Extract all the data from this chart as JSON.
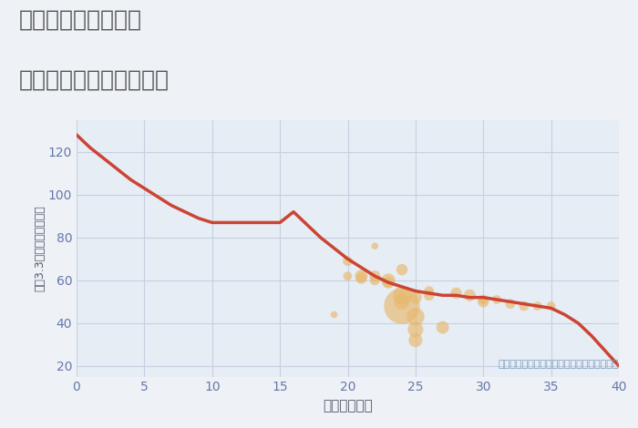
{
  "title_line1": "奈良県奈良市丸山の",
  "title_line2": "築年数別中古戸建て価格",
  "xlabel": "築年数（年）",
  "ylabel": "坪（3.3㎡）単価（万円）",
  "background_color": "#eef2f7",
  "plot_bg_color": "#e6edf5",
  "line_color": "#cc4433",
  "line_x": [
    0,
    1,
    2,
    3,
    4,
    5,
    6,
    7,
    8,
    9,
    10,
    11,
    12,
    13,
    14,
    15,
    16,
    17,
    18,
    19,
    20,
    21,
    22,
    23,
    24,
    25,
    26,
    27,
    28,
    29,
    30,
    31,
    32,
    33,
    34,
    35,
    36,
    37,
    38,
    39,
    40
  ],
  "line_y": [
    128,
    122,
    117,
    112,
    107,
    103,
    99,
    95,
    92,
    89,
    87,
    87,
    87,
    87,
    87,
    87,
    92,
    86,
    80,
    75,
    70,
    66,
    62,
    59,
    57,
    55,
    54,
    53,
    53,
    52,
    52,
    51,
    50,
    49,
    48,
    47,
    44,
    40,
    34,
    27,
    20
  ],
  "bubble_x": [
    19,
    20,
    20,
    21,
    21,
    22,
    22,
    22,
    23,
    23,
    24,
    24,
    24,
    24,
    25,
    25,
    25,
    25,
    26,
    26,
    27,
    28,
    29,
    30,
    30,
    31,
    32,
    33,
    34,
    35
  ],
  "bubble_y": [
    44,
    69,
    62,
    62,
    61,
    76,
    62,
    60,
    60,
    59,
    65,
    53,
    50,
    48,
    52,
    43,
    37,
    32,
    55,
    53,
    38,
    54,
    53,
    51,
    50,
    51,
    49,
    48,
    48,
    48
  ],
  "bubble_size": [
    30,
    60,
    50,
    100,
    80,
    30,
    80,
    60,
    120,
    90,
    80,
    200,
    150,
    800,
    100,
    200,
    150,
    120,
    60,
    70,
    100,
    80,
    90,
    60,
    80,
    50,
    60,
    60,
    50,
    50
  ],
  "bubble_color": "#e8b86d",
  "bubble_alpha": 0.65,
  "annotation": "円の大きさは、取引のあった物件面積を示す",
  "annotation_color": "#7799bb",
  "title_color": "#555555",
  "axis_label_color": "#555566",
  "tick_color": "#6677aa",
  "grid_color": "#c5d0e0",
  "xlim": [
    0,
    40
  ],
  "ylim": [
    15,
    135
  ],
  "xticks": [
    0,
    5,
    10,
    15,
    20,
    25,
    30,
    35,
    40
  ],
  "yticks": [
    20,
    40,
    60,
    80,
    100,
    120
  ],
  "title_fontsize": 18,
  "axis_fontsize": 11,
  "tick_fontsize": 10,
  "annotation_fontsize": 8
}
